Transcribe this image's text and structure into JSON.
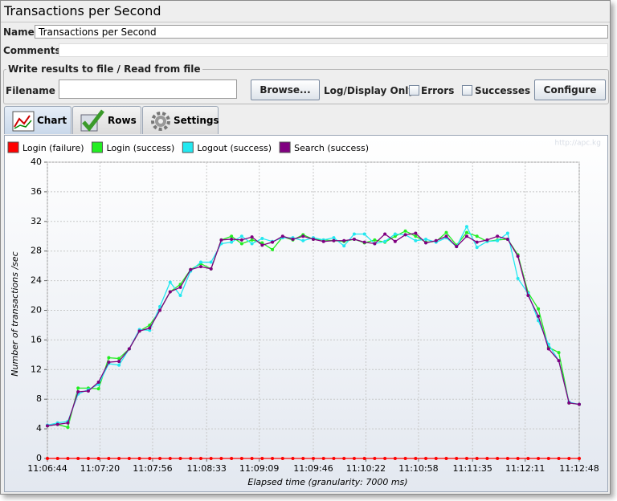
{
  "window": {
    "title": "Transactions per Second"
  },
  "form": {
    "name_label": "Name:",
    "name_value": "Transactions per Second",
    "comments_label": "Comments:",
    "file_group": "Write results to file / Read from file",
    "filename_label": "Filename",
    "browse": "Browse...",
    "log_display": "Log/Display Only:",
    "errors": "Errors",
    "successes": "Successes",
    "configure": "Configure"
  },
  "tabs": [
    "Chart",
    "Rows",
    "Settings"
  ],
  "watermark": "http://apc.kg",
  "chart_data": {
    "type": "line",
    "xlabel": "Elapsed time (granularity: 7000 ms)",
    "ylabel": "Number of transactions /sec",
    "x": [
      "11:06:44",
      "11:06:51",
      "11:06:58",
      "11:07:05",
      "11:07:12",
      "11:07:19",
      "11:07:26",
      "11:07:33",
      "11:07:40",
      "11:07:47",
      "11:07:54",
      "11:08:01",
      "11:08:08",
      "11:08:15",
      "11:08:22",
      "11:08:29",
      "11:08:36",
      "11:08:43",
      "11:08:50",
      "11:08:57",
      "11:09:04",
      "11:09:11",
      "11:09:18",
      "11:09:25",
      "11:09:32",
      "11:09:39",
      "11:09:46",
      "11:09:53",
      "11:10:00",
      "11:10:07",
      "11:10:14",
      "11:10:21",
      "11:10:28",
      "11:10:35",
      "11:10:42",
      "11:10:49",
      "11:10:56",
      "11:11:03",
      "11:11:10",
      "11:11:17",
      "11:11:24",
      "11:11:31",
      "11:11:38",
      "11:11:45",
      "11:11:52",
      "11:11:59",
      "11:12:06",
      "11:12:13",
      "11:12:20",
      "11:12:27",
      "11:12:34",
      "11:12:41",
      "11:12:48"
    ],
    "xlim": [
      "11:06:44",
      "11:12:48"
    ],
    "xticks": [
      "11:06:44",
      "11:07:20",
      "11:07:56",
      "11:08:33",
      "11:09:09",
      "11:09:46",
      "11:10:22",
      "11:10:58",
      "11:11:35",
      "11:12:11",
      "11:12:48"
    ],
    "ylim": [
      0,
      40
    ],
    "yticks": [
      0,
      4,
      8,
      12,
      16,
      20,
      24,
      28,
      32,
      36,
      40
    ],
    "grid": true,
    "series": [
      {
        "name": "Login (failure)",
        "color": "#ff0000",
        "values": [
          0,
          0,
          0,
          0,
          0,
          0,
          0,
          0,
          0,
          0,
          0,
          0,
          0,
          0,
          0,
          0,
          0,
          0,
          0,
          0,
          0,
          0,
          0,
          0,
          0,
          0,
          0,
          0,
          0,
          0,
          0,
          0,
          0,
          0,
          0,
          0,
          0,
          0,
          0,
          0,
          0,
          0,
          0,
          0,
          0,
          0,
          0,
          0,
          0,
          0,
          0,
          0,
          0
        ]
      },
      {
        "name": "Login (success)",
        "color": "#22ee22",
        "values": [
          4.4,
          4.6,
          4.2,
          9.5,
          9.5,
          9.4,
          13.6,
          13.5,
          14.8,
          17.2,
          18.0,
          20.0,
          22.5,
          23.5,
          25.5,
          26.3,
          25.6,
          29.5,
          30.0,
          29.0,
          29.5,
          29.1,
          28.2,
          29.9,
          29.5,
          30.2,
          29.6,
          29.5,
          29.4,
          29.3,
          29.6,
          29.1,
          29.5,
          29.2,
          30.0,
          30.7,
          30.0,
          29.2,
          29.3,
          30.5,
          28.8,
          30.5,
          30.0,
          29.3,
          29.5,
          29.6,
          27.5,
          22.4,
          20.2,
          15.0,
          14.3,
          7.5,
          7.3
        ]
      },
      {
        "name": "Logout (success)",
        "color": "#22e8f0",
        "values": [
          4.5,
          4.8,
          5.0,
          8.7,
          9.3,
          10.0,
          12.8,
          12.6,
          14.8,
          17.4,
          17.3,
          20.5,
          23.8,
          22.0,
          25.3,
          26.5,
          26.5,
          29.0,
          29.2,
          30.0,
          29.0,
          29.7,
          29.3,
          29.8,
          29.8,
          29.4,
          29.8,
          29.5,
          29.8,
          28.7,
          30.3,
          30.3,
          29.0,
          29.3,
          30.3,
          30.2,
          29.4,
          29.6,
          29.2,
          29.8,
          28.6,
          31.3,
          28.5,
          29.3,
          29.4,
          30.4,
          24.3,
          22.3,
          18.6,
          15.4,
          13.2,
          7.6,
          7.3
        ]
      },
      {
        "name": "Search (success)",
        "color": "#800080",
        "values": [
          4.4,
          4.6,
          4.8,
          9.0,
          9.1,
          10.3,
          13.0,
          13.1,
          14.8,
          17.2,
          17.6,
          20.0,
          22.5,
          23.1,
          25.5,
          25.9,
          25.6,
          29.5,
          29.6,
          29.5,
          29.9,
          28.8,
          29.2,
          30.0,
          29.6,
          30.0,
          29.6,
          29.3,
          29.4,
          29.4,
          29.6,
          29.2,
          29.0,
          30.3,
          29.3,
          30.2,
          30.4,
          29.1,
          29.4,
          30.0,
          28.6,
          30.0,
          29.2,
          29.5,
          30.0,
          29.6,
          27.3,
          22.0,
          19.2,
          14.8,
          13.2,
          7.5,
          7.3
        ]
      }
    ]
  }
}
